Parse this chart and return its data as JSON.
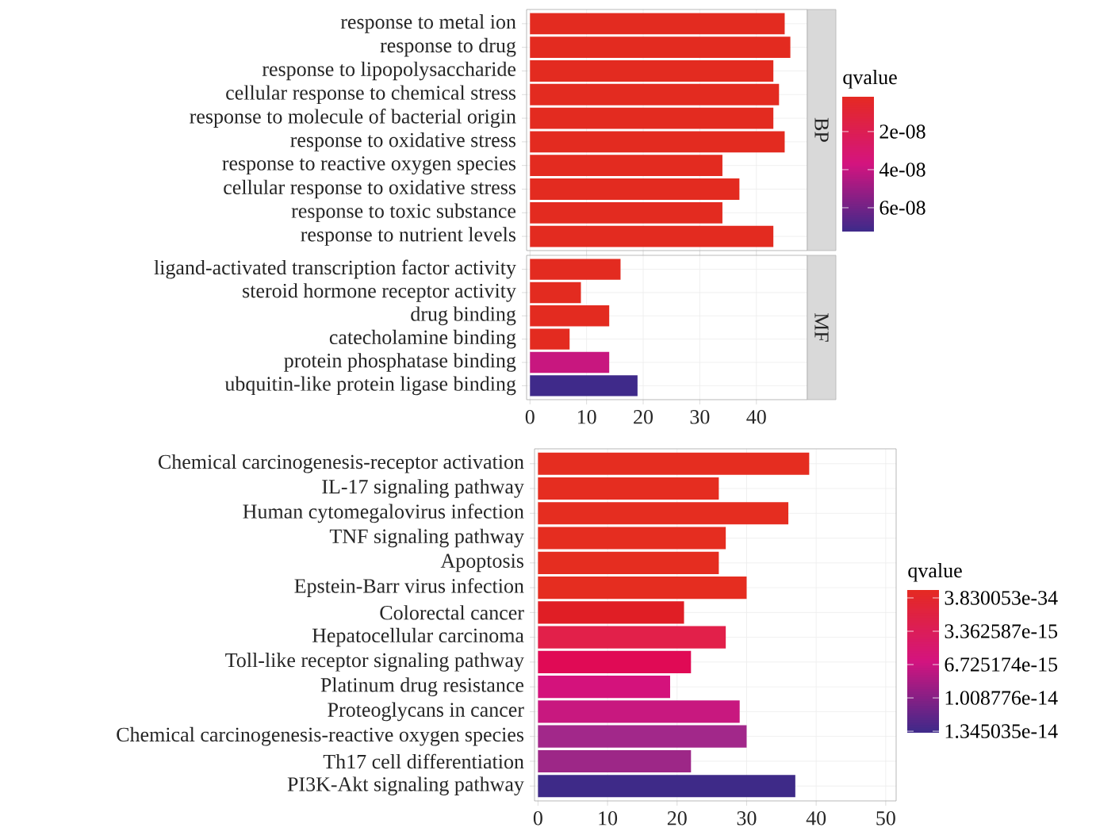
{
  "chart_data": [
    {
      "type": "bar",
      "orientation": "horizontal",
      "title": "BP",
      "categories": [
        "response to metal ion",
        "response to drug",
        "response to lipopolysaccharide",
        "cellular response to chemical stress",
        "response to molecule of bacterial origin",
        "response to oxidative stress",
        "response to reactive oxygen species",
        "cellular response to oxidative stress",
        "response to toxic substance",
        "response to nutrient levels"
      ],
      "values": [
        45,
        46,
        43,
        44,
        43,
        45,
        34,
        37,
        34,
        43
      ],
      "colors": [
        "#e32b20",
        "#e32b20",
        "#e32b20",
        "#e32b20",
        "#e32b20",
        "#e32b20",
        "#e32b20",
        "#e32b20",
        "#e32b20",
        "#e32b20"
      ],
      "xlim": [
        -0.6,
        49
      ],
      "xticks": [
        0,
        10,
        20,
        30,
        40
      ],
      "tick_labels": "y",
      "grid": true,
      "clabel": "qvalue",
      "clim": [
        1.7e-09,
        7.25e-08
      ],
      "cticks": [
        {
          "value": 2e-08,
          "label": "2e-08"
        },
        {
          "value": 4e-08,
          "label": "4e-08"
        },
        {
          "value": 6e-08,
          "label": "6e-08"
        }
      ]
    },
    {
      "type": "bar",
      "orientation": "horizontal",
      "title": "MF",
      "categories": [
        "ligand-activated transcription factor activity",
        "steroid hormone receptor activity",
        "drug binding",
        "catecholamine binding",
        "protein phosphatase binding",
        "ubquitin-like protein ligase binding"
      ],
      "values": [
        16,
        9,
        14,
        7,
        14,
        19
      ],
      "colors": [
        "#e32b20",
        "#e32b20",
        "#e32b20",
        "#e32b20",
        "#c8177f",
        "#3f2a8a"
      ],
      "xlim": [
        -0.6,
        49
      ],
      "xticks": [
        0,
        10,
        20,
        30,
        40
      ],
      "grid": true
    },
    {
      "type": "bar",
      "orientation": "horizontal",
      "categories": [
        "Chemical carcinogenesis-receptor activation",
        "IL-17 signaling pathway",
        "Human cytomegalovirus infection",
        "TNF signaling pathway",
        "Apoptosis",
        "Epstein-Barr virus infection",
        "Colorectal cancer",
        "Hepatocellular carcinoma",
        "Toll-like receptor signaling pathway",
        "Platinum drug resistance",
        "Proteoglycans in cancer",
        "Chemical carcinogenesis-reactive oxygen species",
        "Th17 cell differentiation",
        "PI3K-Akt signaling pathway"
      ],
      "values": [
        39,
        26,
        36,
        27,
        26,
        30,
        21,
        27,
        22,
        19,
        29,
        30,
        22,
        37
      ],
      "colors": [
        "#e52d20",
        "#e52d20",
        "#e52d20",
        "#e52d20",
        "#e52d20",
        "#e52d20",
        "#e01e25",
        "#e2204a",
        "#e00a55",
        "#d4127c",
        "#c8187f",
        "#a2288a",
        "#9d2787",
        "#3e2a88"
      ],
      "xlim": [
        -0.5,
        51.5
      ],
      "xticks": [
        0,
        10,
        20,
        30,
        40,
        50
      ],
      "grid": true,
      "clabel": "qvalue",
      "clim": [
        -8e-16,
        1.36e-14
      ],
      "cticks": [
        {
          "value": 3.830053e-34,
          "label": "3.830053e-34"
        },
        {
          "value": 3.362587e-15,
          "label": "3.362587e-15"
        },
        {
          "value": 6.725174e-15,
          "label": "6.725174e-15"
        },
        {
          "value": 1.008776e-14,
          "label": "1.008776e-14"
        },
        {
          "value": 1.345035e-14,
          "label": "1.345035e-14"
        }
      ]
    }
  ]
}
